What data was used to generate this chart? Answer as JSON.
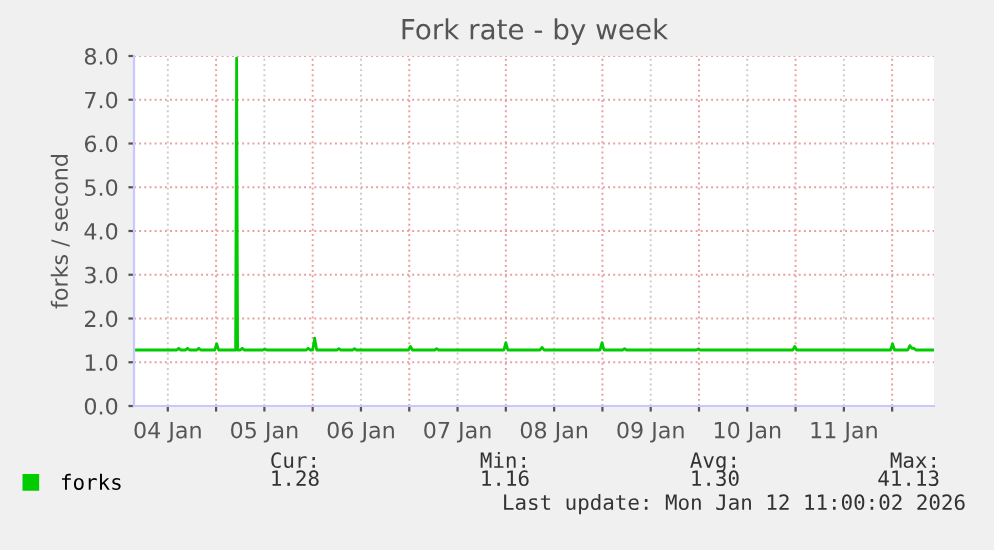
{
  "chart_data": {
    "type": "line",
    "title": "Fork rate - by week",
    "ylabel": "forks / second",
    "x": [
      "2026-01-04T03:36",
      "2026-01-04T14:12",
      "2026-01-04T14:42",
      "2026-01-04T15:12",
      "2026-01-04T16:24",
      "2026-01-04T16:54",
      "2026-01-04T17:24",
      "2026-01-04T19:12",
      "2026-01-04T19:42",
      "2026-01-04T20:12",
      "2026-01-04T23:39",
      "2026-01-05T00:09",
      "2026-01-05T00:39",
      "2026-01-05T04:51",
      "2026-01-05T05:06",
      "2026-01-05T05:21",
      "2026-01-05T06:00",
      "2026-01-05T06:30",
      "2026-01-05T07:00",
      "2026-01-05T11:36",
      "2026-01-05T12:06",
      "2026-01-05T12:36",
      "2026-01-05T22:24",
      "2026-01-05T22:54",
      "2026-01-05T23:24",
      "2026-01-06T00:00",
      "2026-01-06T00:30",
      "2026-01-06T01:00",
      "2026-01-06T06:00",
      "2026-01-06T06:30",
      "2026-01-06T07:00",
      "2026-01-06T09:54",
      "2026-01-06T10:24",
      "2026-01-06T10:54",
      "2026-01-06T23:48",
      "2026-01-07T00:18",
      "2026-01-07T00:48",
      "2026-01-07T06:18",
      "2026-01-07T06:48",
      "2026-01-07T07:18",
      "2026-01-07T23:30",
      "2026-01-08T00:00",
      "2026-01-08T00:30",
      "2026-01-08T08:30",
      "2026-01-08T09:00",
      "2026-01-08T09:30",
      "2026-01-08T23:24",
      "2026-01-08T23:54",
      "2026-01-09T00:24",
      "2026-01-09T05:00",
      "2026-01-09T05:30",
      "2026-01-09T06:00",
      "2026-01-09T23:18",
      "2026-01-09T23:48",
      "2026-01-10T00:18",
      "2026-01-10T23:18",
      "2026-01-10T23:48",
      "2026-01-11T00:18",
      "2026-01-11T23:36",
      "2026-01-12T00:06",
      "2026-01-12T00:36",
      "2026-01-12T03:54",
      "2026-01-12T04:24",
      "2026-01-12T04:54",
      "2026-01-12T05:24",
      "2026-01-12T05:54",
      "2026-01-12T10:24"
    ],
    "series": [
      {
        "name": "forks",
        "color": "#00cc00",
        "values": [
          1.28,
          1.28,
          1.32,
          1.28,
          1.28,
          1.32,
          1.28,
          1.28,
          1.32,
          1.28,
          1.28,
          1.42,
          1.28,
          1.28,
          7.95,
          1.28,
          1.28,
          1.32,
          1.28,
          1.28,
          1.3,
          1.28,
          1.28,
          1.32,
          1.28,
          1.28,
          1.55,
          1.28,
          1.28,
          1.31,
          1.28,
          1.28,
          1.31,
          1.28,
          1.28,
          1.36,
          1.28,
          1.28,
          1.31,
          1.28,
          1.28,
          1.45,
          1.28,
          1.28,
          1.34,
          1.28,
          1.28,
          1.45,
          1.28,
          1.28,
          1.31,
          1.28,
          1.28,
          1.3,
          1.28,
          1.28,
          1.36,
          1.28,
          1.28,
          1.42,
          1.28,
          1.28,
          1.38,
          1.32,
          1.32,
          1.28,
          1.28
        ]
      }
    ],
    "xlim": [
      "2026-01-04T03:36",
      "2026-01-12T10:24"
    ],
    "xticks": [
      {
        "value": "2026-01-04T12:00",
        "label": "04 Jan"
      },
      {
        "value": "2026-01-05T12:00",
        "label": "05 Jan"
      },
      {
        "value": "2026-01-06T12:00",
        "label": "06 Jan"
      },
      {
        "value": "2026-01-07T12:00",
        "label": "07 Jan"
      },
      {
        "value": "2026-01-08T12:00",
        "label": "08 Jan"
      },
      {
        "value": "2026-01-09T12:00",
        "label": "09 Jan"
      },
      {
        "value": "2026-01-10T12:00",
        "label": "10 Jan"
      },
      {
        "value": "2026-01-11T12:00",
        "label": "11 Jan"
      },
      {
        "value": "2026-01-05T00:00",
        "label": null
      },
      {
        "value": "2026-01-06T00:00",
        "label": null
      },
      {
        "value": "2026-01-07T00:00",
        "label": null
      },
      {
        "value": "2026-01-08T00:00",
        "label": null
      },
      {
        "value": "2026-01-09T00:00",
        "label": null
      },
      {
        "value": "2026-01-10T00:00",
        "label": null
      },
      {
        "value": "2026-01-11T00:00",
        "label": null
      },
      {
        "value": "2026-01-12T00:00",
        "label": null
      }
    ],
    "ylim": [
      0,
      8
    ],
    "yticks": [
      {
        "value": 0,
        "label": "0.0"
      },
      {
        "value": 1,
        "label": "1.0"
      },
      {
        "value": 2,
        "label": "2.0"
      },
      {
        "value": 3,
        "label": "3.0"
      },
      {
        "value": 4,
        "label": "4.0"
      },
      {
        "value": 5,
        "label": "5.0"
      },
      {
        "value": 6,
        "label": "6.0"
      },
      {
        "value": 7,
        "label": "7.0"
      },
      {
        "value": 8,
        "label": "8.0"
      }
    ],
    "grid": true,
    "legend": "bottom left",
    "annotations": [
      "Cur:",
      "Min:",
      "Avg:",
      "Max:",
      "1.28",
      "1.16",
      "1.30",
      "41.13",
      "Last update: Mon Jan 12 11:00:02 2026"
    ]
  }
}
